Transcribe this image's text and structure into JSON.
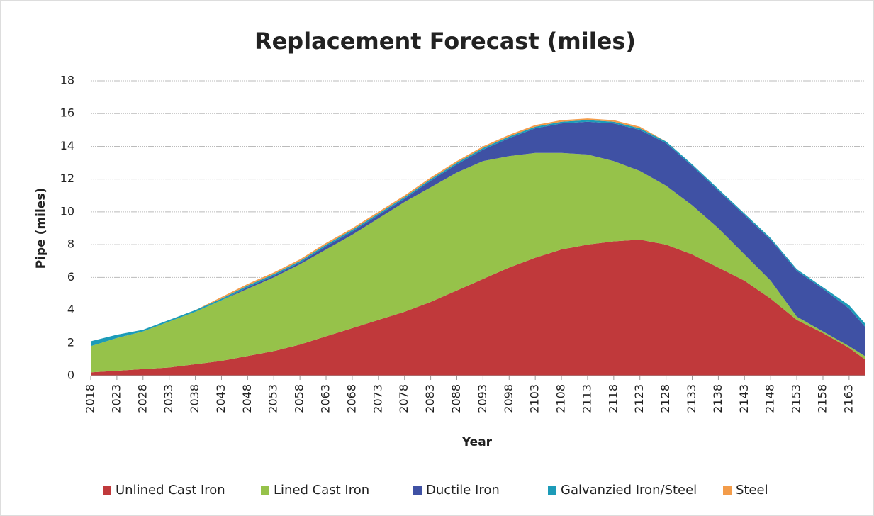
{
  "chart_data": {
    "type": "stacked_area",
    "title": "Replacement Forecast (miles)",
    "xlabel": "Year",
    "ylabel": "Pipe (miles)",
    "x": [
      2018,
      2023,
      2028,
      2033,
      2038,
      2043,
      2048,
      2053,
      2058,
      2063,
      2068,
      2073,
      2078,
      2083,
      2088,
      2093,
      2098,
      2103,
      2108,
      2113,
      2118,
      2123,
      2128,
      2133,
      2138,
      2143,
      2148,
      2153,
      2158,
      2163,
      2166
    ],
    "xlim": [
      2018,
      2166
    ],
    "xticks": [
      2018,
      2023,
      2028,
      2033,
      2038,
      2043,
      2048,
      2053,
      2058,
      2063,
      2068,
      2073,
      2078,
      2083,
      2088,
      2093,
      2098,
      2103,
      2108,
      2113,
      2118,
      2123,
      2128,
      2133,
      2138,
      2143,
      2148,
      2153,
      2158,
      2163
    ],
    "ylim": [
      0,
      18
    ],
    "yticks": [
      0,
      2,
      4,
      6,
      8,
      10,
      12,
      14,
      16,
      18
    ],
    "grid": true,
    "legend": "bottom",
    "series": [
      {
        "name": "Unlined Cast Iron",
        "color": "#c0393b",
        "values": [
          0.2,
          0.3,
          0.4,
          0.5,
          0.7,
          0.9,
          1.2,
          1.5,
          1.9,
          2.4,
          2.9,
          3.4,
          3.9,
          4.5,
          5.2,
          5.9,
          6.6,
          7.2,
          7.7,
          8.0,
          8.2,
          8.3,
          8.0,
          7.4,
          6.6,
          5.8,
          4.7,
          3.4,
          2.6,
          1.7,
          1.0
        ]
      },
      {
        "name": "Lined Cast Iron",
        "color": "#96c24a",
        "values": [
          1.6,
          2.0,
          2.3,
          2.8,
          3.2,
          3.7,
          4.1,
          4.5,
          4.9,
          5.3,
          5.7,
          6.2,
          6.7,
          7.0,
          7.2,
          7.2,
          6.8,
          6.4,
          5.9,
          5.5,
          4.9,
          4.2,
          3.6,
          3.0,
          2.4,
          1.6,
          1.1,
          0.2,
          0.1,
          0.1,
          0.2
        ]
      },
      {
        "name": "Ductile Iron",
        "color": "#3f51a4",
        "values": [
          0,
          0,
          0,
          0,
          0,
          0,
          0.1,
          0.1,
          0.1,
          0.2,
          0.2,
          0.2,
          0.2,
          0.4,
          0.5,
          0.7,
          1.1,
          1.5,
          1.8,
          2.0,
          2.3,
          2.5,
          2.6,
          2.4,
          2.3,
          2.4,
          2.5,
          2.8,
          2.6,
          2.3,
          1.8
        ]
      },
      {
        "name": "Galvanzied Iron/Steel",
        "color": "#1c9bb8",
        "values": [
          0.3,
          0.2,
          0.1,
          0.1,
          0.1,
          0.1,
          0.1,
          0.1,
          0.1,
          0.1,
          0.1,
          0.1,
          0.1,
          0.1,
          0.1,
          0.1,
          0.1,
          0.1,
          0.1,
          0.1,
          0.1,
          0.1,
          0.1,
          0.1,
          0.1,
          0.1,
          0.1,
          0.1,
          0.1,
          0.2,
          0.2
        ]
      },
      {
        "name": "Steel",
        "color": "#f39c4a",
        "values": [
          0,
          0,
          0,
          0,
          0,
          0.1,
          0.1,
          0.1,
          0.1,
          0.1,
          0.1,
          0.1,
          0.1,
          0.1,
          0.1,
          0.1,
          0.1,
          0.1,
          0.1,
          0.1,
          0.1,
          0.1,
          0,
          0,
          0,
          0,
          0,
          0,
          0,
          0,
          0
        ]
      }
    ]
  }
}
